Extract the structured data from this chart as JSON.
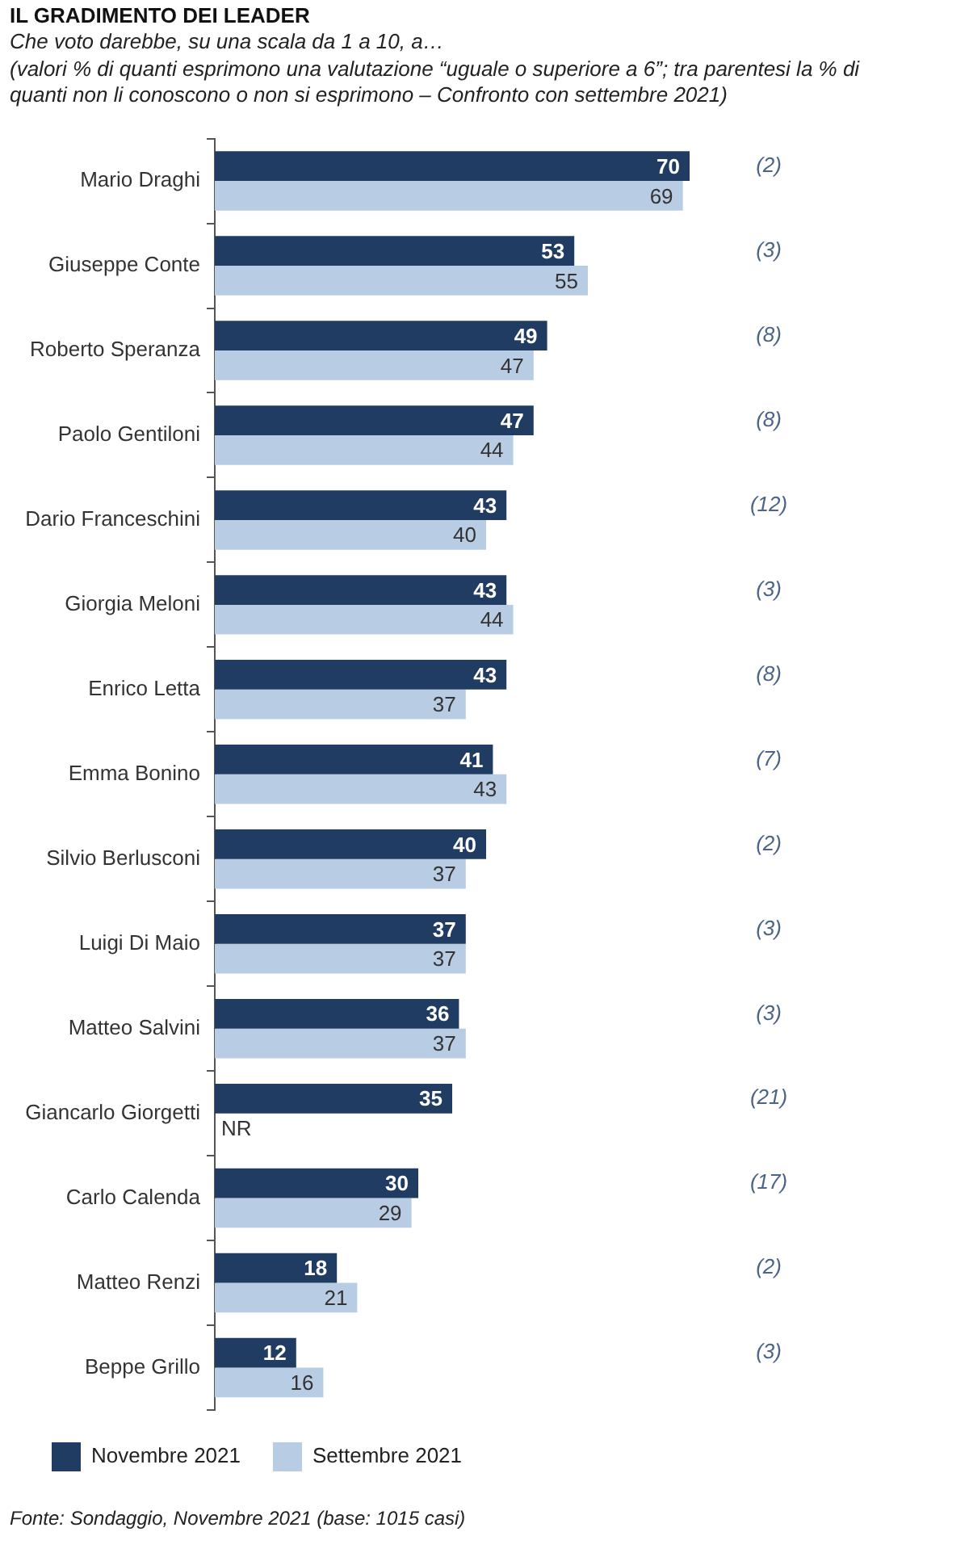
{
  "chart_data": {
    "type": "bar",
    "orientation": "horizontal",
    "title": "IL GRADIMENTO DEI LEADER",
    "subtitle": "Che voto darebbe, su una scala da 1 a 10, a…",
    "categories": [
      "Mario Draghi",
      "Giuseppe Conte",
      "Roberto Speranza",
      "Paolo Gentiloni",
      "Dario Franceschini",
      "Giorgia Meloni",
      "Enrico Letta",
      "Emma Bonino",
      "Silvio Berlusconi",
      "Luigi Di Maio",
      "Matteo Salvini",
      "Giancarlo Giorgetti",
      "Carlo Calenda",
      "Matteo Renzi",
      "Beppe Grillo"
    ],
    "series": [
      {
        "name": "Novembre 2021",
        "color": "#213c63",
        "values": [
          70,
          53,
          49,
          47,
          43,
          43,
          43,
          41,
          40,
          37,
          36,
          35,
          30,
          18,
          12
        ],
        "value_labels": [
          "70",
          "53",
          "49",
          "47",
          "43",
          "43",
          "43",
          "41",
          "40",
          "37",
          "36",
          "35",
          "30",
          "18",
          "12"
        ]
      },
      {
        "name": "Settembre 2021",
        "color": "#b8cce4",
        "values": [
          69,
          55,
          47,
          44,
          40,
          44,
          37,
          43,
          37,
          37,
          37,
          null,
          29,
          21,
          16
        ],
        "value_labels": [
          "69",
          "55",
          "47",
          "44",
          "40",
          "44",
          "37",
          "43",
          "37",
          "37",
          "37",
          "NR",
          "29",
          "21",
          "16"
        ]
      }
    ],
    "legend": "bottom left",
    "tick_labels": "y",
    "annotations": [
      "(valori % di quanti esprimono una valutazione “uguale o superiore a 6”; tra parentesi la % di quanti non li conoscono o non si esprimono – Confronto con settembre 2021)",
      "(2)",
      "(3)",
      "(8)",
      "(8)",
      "(12)",
      "(3)",
      "(8)",
      "(7)",
      "(2)",
      "(3)",
      "(3)",
      "(21)",
      "(17)",
      "(2)",
      "(3)",
      "Fonte: Sondaggio, Novembre 2021 (base: 1015 casi)"
    ]
  }
}
